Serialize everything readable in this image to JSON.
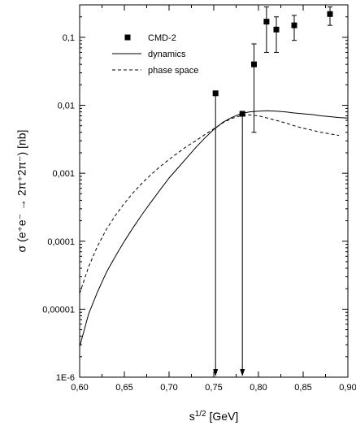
{
  "chart_data": {
    "type": "scatter",
    "xlabel": "s^{1/2} [GeV]",
    "ylabel": "σ (e⁺e⁻ → 2π⁺2π⁻) [nb]",
    "xlim": [
      0.6,
      0.9
    ],
    "ylim": [
      1e-06,
      0.3
    ],
    "y_scale": "log",
    "grid": false,
    "legend": "top-left",
    "x_ticks": [
      "0,60",
      "0,65",
      "0,70",
      "0,75",
      "0,80",
      "0,85",
      "0,90"
    ],
    "y_ticks": [
      "1E-6",
      "0,00001",
      "0,0001",
      "0,001",
      "0,01",
      "0,1"
    ],
    "series": [
      {
        "name": "CMD-2",
        "kind": "points",
        "marker": "square",
        "x": [
          0.752,
          0.782,
          0.795,
          0.809,
          0.82,
          0.84,
          0.88
        ],
        "y": [
          0.015,
          0.0075,
          0.04,
          0.17,
          0.13,
          0.15,
          0.22
        ],
        "y_low": [
          null,
          null,
          0.004,
          0.06,
          0.06,
          0.09,
          0.15
        ],
        "y_high": [
          null,
          null,
          0.08,
          0.28,
          0.2,
          0.21,
          0.28
        ],
        "upper_limit_arrows": [
          true,
          true,
          false,
          false,
          false,
          false,
          false
        ]
      },
      {
        "name": "dynamics",
        "kind": "line",
        "dash": "solid",
        "x": [
          0.6,
          0.61,
          0.62,
          0.63,
          0.64,
          0.65,
          0.66,
          0.67,
          0.68,
          0.69,
          0.7,
          0.71,
          0.72,
          0.73,
          0.74,
          0.75,
          0.76,
          0.77,
          0.78,
          0.79,
          0.8,
          0.81,
          0.82,
          0.83,
          0.84,
          0.85,
          0.86,
          0.87,
          0.88,
          0.89,
          0.9
        ],
        "y": [
          2.8e-06,
          8.5e-06,
          1.8e-05,
          3.5e-05,
          6e-05,
          0.0001,
          0.00016,
          0.00025,
          0.00038,
          0.00057,
          0.00085,
          0.0012,
          0.0017,
          0.0024,
          0.0033,
          0.0044,
          0.0056,
          0.0066,
          0.0075,
          0.008,
          0.0082,
          0.0083,
          0.0082,
          0.008,
          0.0077,
          0.0075,
          0.0073,
          0.007,
          0.0068,
          0.0066,
          0.0065
        ]
      },
      {
        "name": "phase space",
        "kind": "line",
        "dash": "dashed",
        "x": [
          0.6,
          0.61,
          0.62,
          0.63,
          0.64,
          0.65,
          0.66,
          0.67,
          0.68,
          0.69,
          0.7,
          0.71,
          0.72,
          0.73,
          0.74,
          0.75,
          0.76,
          0.77,
          0.78,
          0.79,
          0.8,
          0.81,
          0.82,
          0.83,
          0.84,
          0.85,
          0.86,
          0.87,
          0.88,
          0.89
        ],
        "y": [
          1.7e-05,
          4.2e-05,
          8.5e-05,
          0.00015,
          0.00024,
          0.00036,
          0.00052,
          0.00072,
          0.00096,
          0.00125,
          0.0016,
          0.002,
          0.0025,
          0.003,
          0.0037,
          0.0045,
          0.0055,
          0.0064,
          0.007,
          0.0072,
          0.007,
          0.0065,
          0.006,
          0.0055,
          0.005,
          0.0046,
          0.0043,
          0.004,
          0.0038,
          0.0036
        ]
      }
    ]
  }
}
